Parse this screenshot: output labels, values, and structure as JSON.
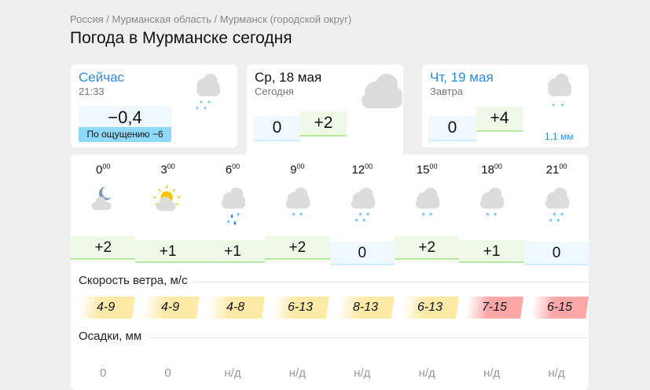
{
  "breadcrumbs": [
    "Россия",
    "Мурманская область",
    "Мурманск (городской округ)"
  ],
  "title": "Погода в Мурманске сегодня",
  "now": {
    "label": "Сейчас",
    "time": "21:33",
    "temp": "−0,4",
    "feels": "По ощущению −6",
    "icon": "cloud-snow-icon"
  },
  "today": {
    "label": "Ср, 18 мая",
    "sub": "Сегодня",
    "min": "0",
    "max": "+2",
    "icon": "cloud-icon"
  },
  "tomorrow": {
    "label": "Чт, 19 мая",
    "sub": "Завтра",
    "min": "0",
    "max": "+4",
    "precip": "1,1 мм",
    "icon": "cloud-snow-icon"
  },
  "colors": {
    "accent": "#2a8cf0",
    "warm": "#eef9e8",
    "cold": "#eef8fe",
    "wind_moderate": "#ffeaa8",
    "wind_strong": "#ffa6a6"
  },
  "hourly": [
    {
      "h": "0",
      "m": "00",
      "icon": "moon-cloud",
      "temp": "+2",
      "wind": "4-9",
      "windlevel": "moderate",
      "precip": "0"
    },
    {
      "h": "3",
      "m": "00",
      "icon": "sun-cloud",
      "temp": "+1",
      "wind": "4-9",
      "windlevel": "moderate",
      "precip": "0"
    },
    {
      "h": "6",
      "m": "00",
      "icon": "cloud-rain-snow",
      "temp": "+1",
      "wind": "4-8",
      "windlevel": "moderate",
      "precip": "н/д"
    },
    {
      "h": "9",
      "m": "00",
      "icon": "cloud-light-snow",
      "temp": "+2",
      "wind": "6-13",
      "windlevel": "moderate",
      "precip": "н/д"
    },
    {
      "h": "12",
      "m": "00",
      "icon": "cloud-snow",
      "temp": "0",
      "wind": "8-13",
      "windlevel": "moderate",
      "precip": "н/д"
    },
    {
      "h": "15",
      "m": "00",
      "icon": "cloud-light-snow",
      "temp": "+2",
      "wind": "6-13",
      "windlevel": "moderate",
      "precip": "н/д"
    },
    {
      "h": "18",
      "m": "00",
      "icon": "cloud-light-snow",
      "temp": "+1",
      "wind": "7-15",
      "windlevel": "strong",
      "precip": "н/д"
    },
    {
      "h": "21",
      "m": "00",
      "icon": "cloud-snow",
      "temp": "0",
      "wind": "6-15",
      "windlevel": "strong",
      "precip": "н/д"
    }
  ],
  "sections": {
    "wind": "Скорость ветра, м/с",
    "precip": "Осадки, мм"
  }
}
